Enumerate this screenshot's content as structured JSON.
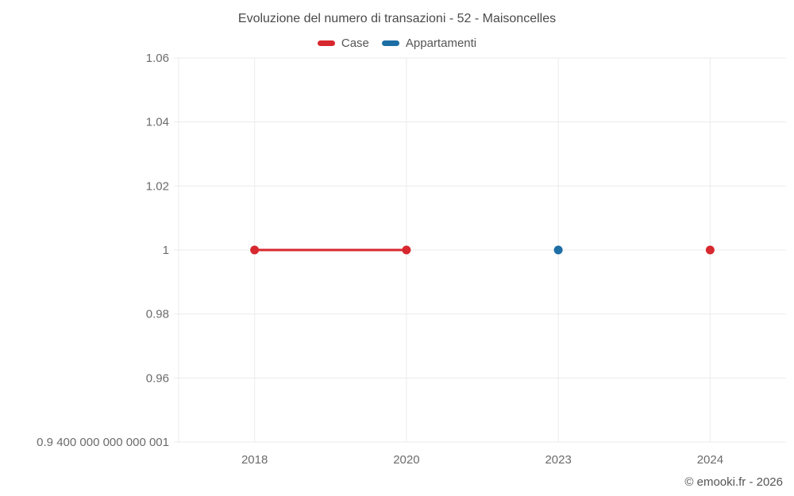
{
  "chart_data": {
    "type": "line",
    "title": "Evoluzione del numero di transazioni - 52 - Maisoncelles",
    "categories": [
      "2018",
      "2020",
      "2023",
      "2024"
    ],
    "series": [
      {
        "name": "Case",
        "color": "#d7282f",
        "values": [
          1,
          1,
          null,
          1
        ]
      },
      {
        "name": "Appartamenti",
        "color": "#1c6ea4",
        "values": [
          null,
          null,
          1,
          null
        ]
      }
    ],
    "y_axis": {
      "tick_labels": [
        "1.06",
        "1.04",
        "1.02",
        "1",
        "0.98",
        "0.96",
        "0.9 400 000 000 000 001"
      ],
      "tick_values": [
        1.06,
        1.04,
        1.02,
        1,
        0.98,
        0.96,
        0.9400000000000001
      ],
      "max": 1.06,
      "min": 0.9400000000000001
    },
    "legend_position": "top",
    "grid": true
  },
  "footer": {
    "copyright": "© emooki.fr - 2026"
  },
  "colors": {
    "grid": "#ebebeb",
    "axis_text": "#6b6b6b",
    "title_text": "#4a4a4a",
    "legend_text": "#555555"
  }
}
